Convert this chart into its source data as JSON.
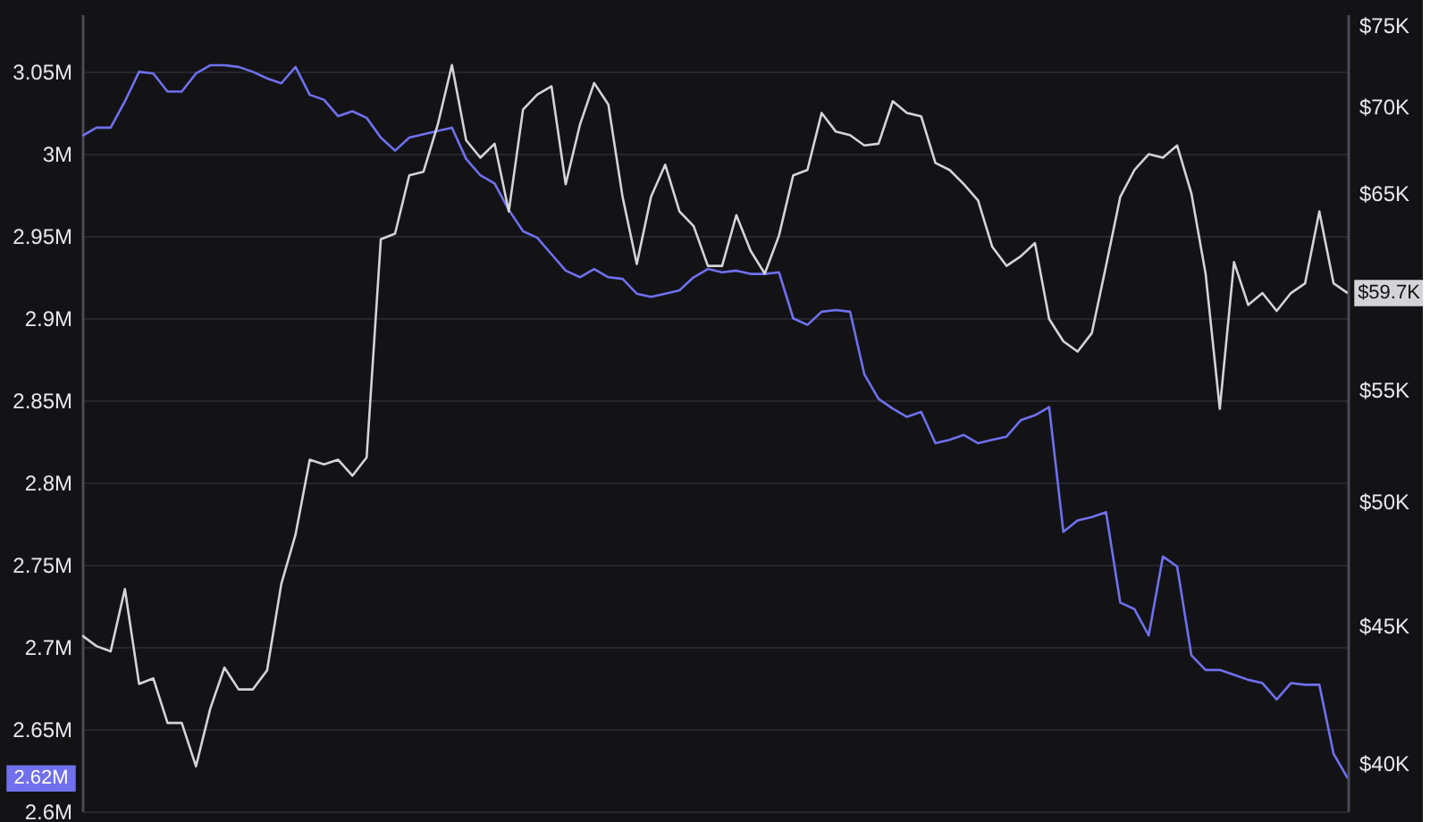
{
  "chart_data": {
    "type": "line",
    "categories": [
      null,
      null,
      null,
      null,
      null,
      null,
      null,
      null,
      null,
      null,
      null,
      null,
      null,
      null,
      null,
      null,
      null,
      null,
      null,
      null,
      null,
      null,
      null,
      null,
      null,
      null,
      null,
      null,
      null,
      null,
      null,
      null,
      null,
      null,
      null,
      null,
      null,
      null,
      null,
      null,
      null,
      null,
      null,
      null,
      null,
      null,
      null,
      null,
      null,
      null,
      null,
      null,
      null,
      null,
      null,
      null,
      null,
      null,
      null,
      null,
      null,
      null,
      null,
      null,
      null,
      null,
      null,
      null,
      null,
      null,
      null,
      null,
      null,
      null,
      null,
      null,
      null,
      null,
      null,
      null,
      null,
      null,
      null,
      null,
      null,
      null,
      null,
      null,
      null,
      null
    ],
    "series": [
      {
        "color": "#7070ee",
        "values": [
          3011000,
          3016000,
          3016000,
          3032000,
          3050000,
          3049000,
          3038000,
          3038000,
          3049000,
          3054000,
          3054000,
          3053000,
          3050000,
          3046000,
          3043000,
          3053000,
          3036000,
          3033000,
          3023000,
          3026000,
          3022000,
          3010000,
          3002000,
          3010000,
          3012000,
          3014000,
          3016000,
          2997000,
          2987000,
          2982000,
          2966000,
          2953000,
          2949000,
          2939000,
          2929000,
          2925000,
          2930000,
          2925000,
          2924000,
          2915000,
          2913000,
          2915000,
          2917000,
          2925000,
          2930000,
          2928000,
          2929000,
          2927000,
          2927000,
          2928000,
          2900000,
          2896000,
          2904000,
          2905000,
          2904000,
          2866000,
          2851000,
          2845000,
          2840000,
          2843000,
          2824000,
          2826000,
          2829000,
          2824000,
          2826000,
          2828000,
          2838000,
          2841000,
          2846000,
          2770000,
          2777000,
          2779000,
          2782000,
          2727000,
          2723000,
          2707000,
          2755000,
          2749000,
          2695000,
          2686000,
          2686000,
          2683000,
          2680000,
          2678000,
          2668000,
          2678000,
          2677000,
          2677000,
          2635000,
          2620000
        ]
      },
      {
        "color": "#d4d4d8",
        "axis": "y2",
        "values": [
          44600,
          44200,
          44000,
          46400,
          42800,
          43000,
          41400,
          41400,
          39900,
          41900,
          43400,
          42600,
          42600,
          43300,
          46600,
          48600,
          51800,
          51600,
          51800,
          51100,
          51900,
          62500,
          62800,
          66000,
          66200,
          68900,
          72500,
          68000,
          67000,
          67800,
          64000,
          69800,
          70700,
          71200,
          65500,
          68900,
          71400,
          70100,
          64800,
          61200,
          64800,
          66600,
          64000,
          63200,
          61100,
          61100,
          63800,
          61900,
          60700,
          62700,
          66000,
          66300,
          69600,
          68500,
          68300,
          67700,
          67800,
          70300,
          69600,
          69400,
          66700,
          66300,
          65500,
          64600,
          62100,
          61100,
          61600,
          62300,
          58400,
          57300,
          56800,
          57700,
          61100,
          64800,
          66300,
          67200,
          67000,
          67700,
          65000,
          60700,
          54100,
          61300,
          59100,
          59700,
          58800,
          59700,
          60200,
          64000,
          60200,
          59700
        ]
      }
    ],
    "ylim": [
      2600000,
      3085000
    ],
    "yticks": [
      {
        "value": 2600000,
        "label": "2.6M"
      },
      {
        "value": 2650000,
        "label": "2.65M"
      },
      {
        "value": 2700000,
        "label": "2.7M"
      },
      {
        "value": 2750000,
        "label": "2.75M"
      },
      {
        "value": 2800000,
        "label": "2.8M"
      },
      {
        "value": 2850000,
        "label": "2.85M"
      },
      {
        "value": 2900000,
        "label": "2.9M"
      },
      {
        "value": 2950000,
        "label": "2.95M"
      },
      {
        "value": 3000000,
        "label": "3M"
      },
      {
        "value": 3050000,
        "label": "3.05M"
      }
    ],
    "y2lim": [
      38400,
      75700
    ],
    "y2ticks": [
      {
        "value": 40000,
        "label": "$40K"
      },
      {
        "value": 45000,
        "label": "$45K"
      },
      {
        "value": 50000,
        "label": "$50K"
      },
      {
        "value": 55000,
        "label": "$55K"
      },
      {
        "value": 65000,
        "label": "$65K"
      },
      {
        "value": 70000,
        "label": "$70K"
      },
      {
        "value": 75000,
        "label": "$75K"
      }
    ],
    "log": "y2",
    "grid": "y",
    "annotations": [
      "2.62M",
      "$59.7K"
    ]
  }
}
